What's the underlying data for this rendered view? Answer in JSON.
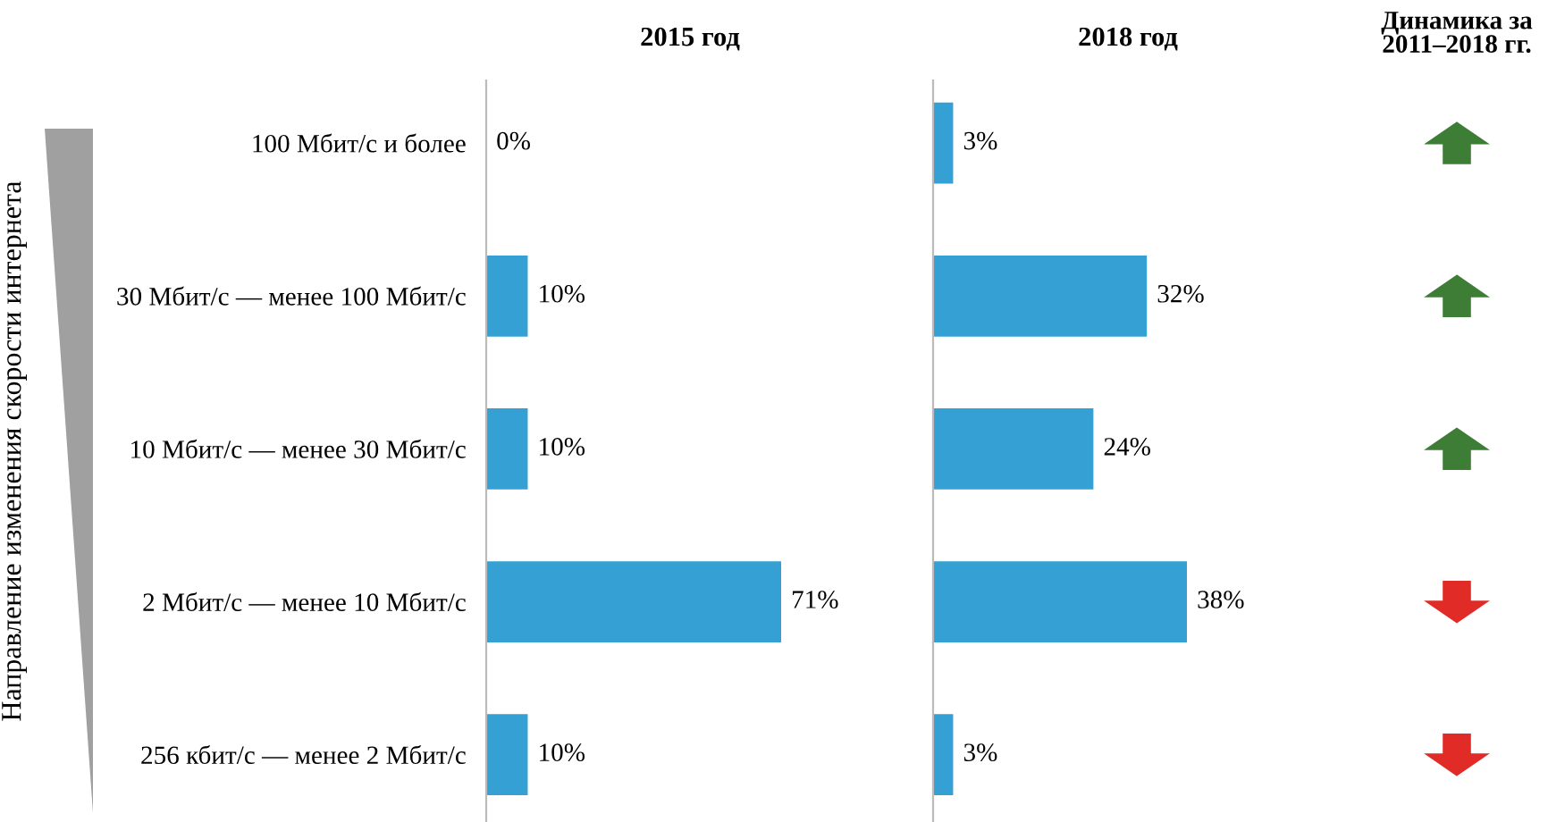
{
  "chart_data": [
    {
      "type": "bar",
      "orientation": "horizontal",
      "title": "2015 год",
      "ylabel": "Направление изменения скорости интернета",
      "categories": [
        "100 Мбит/с и более",
        "30 Мбит/с — менее 100 Мбит/с",
        "10 Мбит/с — менее 30 Мбит/с",
        "2 Мбит/с — менее 10 Мбит/с",
        "256 кбит/с — менее 2 Мбит/с"
      ],
      "values": [
        0,
        10,
        10,
        71,
        10
      ],
      "value_labels": [
        "0%",
        "10%",
        "10%",
        "71%",
        "10%"
      ],
      "color": "#35a0d3",
      "grid": false,
      "legend": false
    },
    {
      "type": "bar",
      "orientation": "horizontal",
      "title": "2018 год",
      "categories": [
        null,
        null,
        null,
        null,
        null
      ],
      "values": [
        3,
        32,
        24,
        38,
        3
      ],
      "value_labels": [
        "3%",
        "32%",
        "24%",
        "38%",
        "3%"
      ],
      "color": "#35a0d3",
      "grid": false,
      "legend": false
    },
    {
      "type": "other",
      "title": "Динамика за\n2011–2018 гг."
    }
  ]
}
